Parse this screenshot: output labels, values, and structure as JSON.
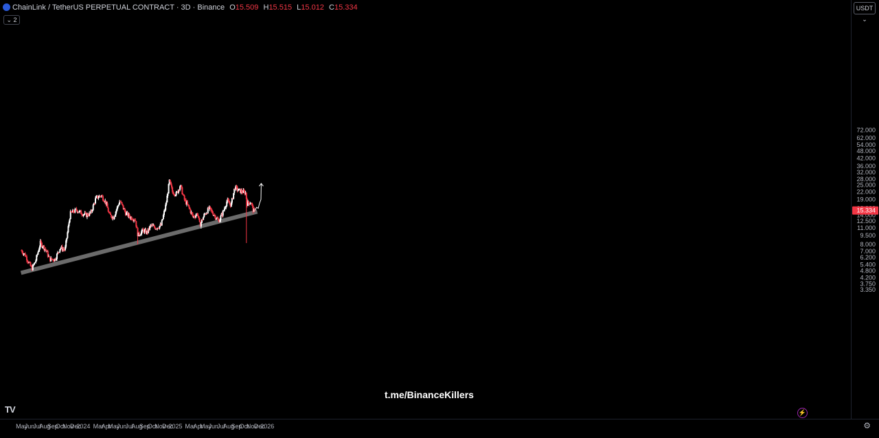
{
  "header": {
    "title": "ChainLink / TetherUS PERPETUAL CONTRACT · 3D · Binance",
    "open_label": "O",
    "open_value": "15.509",
    "high_label": "H",
    "high_value": "15.515",
    "low_label": "L",
    "low_value": "15.012",
    "close_label": "C",
    "close_value": "15.334",
    "collapse_label": "⌄ 2"
  },
  "currency_button": "USDT ⌄",
  "watermark": "t.me/BinanceKillers",
  "logo_text": "TV",
  "icons": {
    "settings": "gear-icon",
    "replay": "lightning-icon"
  },
  "colors": {
    "up": "#ffffff",
    "down": "#f23645",
    "trendline": "#6b6b6b",
    "price_badge": "#f23645",
    "background": "#000000"
  },
  "chart_data": {
    "type": "candlestick",
    "scale": "log",
    "y_ticks": [
      "72.000",
      "62.000",
      "54.000",
      "48.000",
      "42.000",
      "36.000",
      "32.000",
      "28.000",
      "25.000",
      "22.000",
      "19.000",
      "16.000",
      "14.000",
      "12.500",
      "11.000",
      "9.500",
      "8.000",
      "7.000",
      "6.200",
      "5.400",
      "4.800",
      "4.200",
      "3.750",
      "3.350"
    ],
    "current_price": "15.334",
    "x_ticks": [
      "May",
      "Jun",
      "Jul",
      "Aug",
      "Sep",
      "Oct",
      "Nov",
      "Dec",
      "2024",
      "Mar",
      "Apr",
      "May",
      "Jun",
      "Jul",
      "Aug",
      "Sep",
      "Oct",
      "Nov",
      "Dec",
      "2025",
      "Mar",
      "Apr",
      "May",
      "Jun",
      "Jul",
      "Aug",
      "Sep",
      "Oct",
      "Nov",
      "Dec",
      "2026"
    ],
    "x_tick_dates": [
      "2023-05-01",
      "2023-06-01",
      "2023-07-01",
      "2023-08-01",
      "2023-09-01",
      "2023-10-01",
      "2023-11-01",
      "2023-12-01",
      "2024-01-01",
      "2024-03-01",
      "2024-04-01",
      "2024-05-01",
      "2024-06-01",
      "2024-07-01",
      "2024-08-01",
      "2024-09-01",
      "2024-10-01",
      "2024-11-01",
      "2024-12-01",
      "2025-01-01",
      "2025-03-01",
      "2025-04-01",
      "2025-05-01",
      "2025-06-01",
      "2025-07-01",
      "2025-08-01",
      "2025-09-01",
      "2025-10-01",
      "2025-11-01",
      "2025-12-01",
      "2026-01-01"
    ],
    "price_path": [
      {
        "date": "2023-04-30",
        "price": 7.1
      },
      {
        "date": "2023-05-15",
        "price": 6.5
      },
      {
        "date": "2023-06-10",
        "price": 5.0
      },
      {
        "date": "2023-06-25",
        "price": 5.8
      },
      {
        "date": "2023-07-14",
        "price": 8.2
      },
      {
        "date": "2023-08-05",
        "price": 7.2
      },
      {
        "date": "2023-08-20",
        "price": 6.0
      },
      {
        "date": "2023-09-10",
        "price": 6.0
      },
      {
        "date": "2023-10-01",
        "price": 7.5
      },
      {
        "date": "2023-10-20",
        "price": 7.2
      },
      {
        "date": "2023-11-10",
        "price": 14.5
      },
      {
        "date": "2023-12-05",
        "price": 15.5
      },
      {
        "date": "2023-12-20",
        "price": 14.8
      },
      {
        "date": "2024-01-12",
        "price": 14.0
      },
      {
        "date": "2024-01-30",
        "price": 14.5
      },
      {
        "date": "2024-02-20",
        "price": 19.5
      },
      {
        "date": "2024-03-12",
        "price": 20.5
      },
      {
        "date": "2024-03-30",
        "price": 18.0
      },
      {
        "date": "2024-04-14",
        "price": 14.0
      },
      {
        "date": "2024-04-30",
        "price": 13.5
      },
      {
        "date": "2024-05-25",
        "price": 18.5
      },
      {
        "date": "2024-06-18",
        "price": 14.5
      },
      {
        "date": "2024-07-05",
        "price": 13.5
      },
      {
        "date": "2024-07-25",
        "price": 13.0
      },
      {
        "date": "2024-08-05",
        "price": 9.5
      },
      {
        "date": "2024-08-25",
        "price": 10.5
      },
      {
        "date": "2024-09-10",
        "price": 10.0
      },
      {
        "date": "2024-09-25",
        "price": 11.5
      },
      {
        "date": "2024-10-15",
        "price": 11.0
      },
      {
        "date": "2024-11-05",
        "price": 11.5
      },
      {
        "date": "2024-11-25",
        "price": 17.5
      },
      {
        "date": "2024-12-08",
        "price": 27.0
      },
      {
        "date": "2024-12-20",
        "price": 22.0
      },
      {
        "date": "2025-01-05",
        "price": 21.0
      },
      {
        "date": "2025-01-20",
        "price": 25.0
      },
      {
        "date": "2025-02-05",
        "price": 19.0
      },
      {
        "date": "2025-02-25",
        "price": 16.0
      },
      {
        "date": "2025-03-12",
        "price": 13.5
      },
      {
        "date": "2025-03-30",
        "price": 14.5
      },
      {
        "date": "2025-04-08",
        "price": 11.5
      },
      {
        "date": "2025-04-25",
        "price": 14.0
      },
      {
        "date": "2025-05-15",
        "price": 16.0
      },
      {
        "date": "2025-06-05",
        "price": 14.0
      },
      {
        "date": "2025-06-22",
        "price": 12.5
      },
      {
        "date": "2025-07-10",
        "price": 15.0
      },
      {
        "date": "2025-07-25",
        "price": 18.5
      },
      {
        "date": "2025-08-10",
        "price": 17.0
      },
      {
        "date": "2025-08-25",
        "price": 24.0
      },
      {
        "date": "2025-09-10",
        "price": 22.5
      },
      {
        "date": "2025-09-25",
        "price": 22.0
      },
      {
        "date": "2025-10-08",
        "price": 21.5
      },
      {
        "date": "2025-10-12",
        "price": 17.5
      },
      {
        "date": "2025-10-28",
        "price": 18.0
      },
      {
        "date": "2025-11-08",
        "price": 15.0
      },
      {
        "date": "2025-11-12",
        "price": 15.334
      }
    ],
    "notable_lows": [
      {
        "date": "2025-10-10",
        "price": 8.2
      },
      {
        "date": "2024-08-05",
        "price": 8.0
      },
      {
        "date": "2023-06-10",
        "price": 4.8
      }
    ],
    "trendline": {
      "start": {
        "date": "2023-04-28",
        "price": 4.62
      },
      "end": {
        "date": "2025-11-22",
        "price": 15.0
      }
    },
    "projection": [
      {
        "date": "2025-11-12",
        "price": 15.334
      },
      {
        "date": "2025-11-20",
        "price": 16.3
      },
      {
        "date": "2025-11-26",
        "price": 16.0
      },
      {
        "date": "2025-12-01",
        "price": 17.5
      },
      {
        "date": "2025-12-05",
        "price": 18.5
      },
      {
        "date": "2025-12-07",
        "price": 19.0
      },
      {
        "date": "2025-12-08",
        "price": 25.8
      }
    ]
  }
}
